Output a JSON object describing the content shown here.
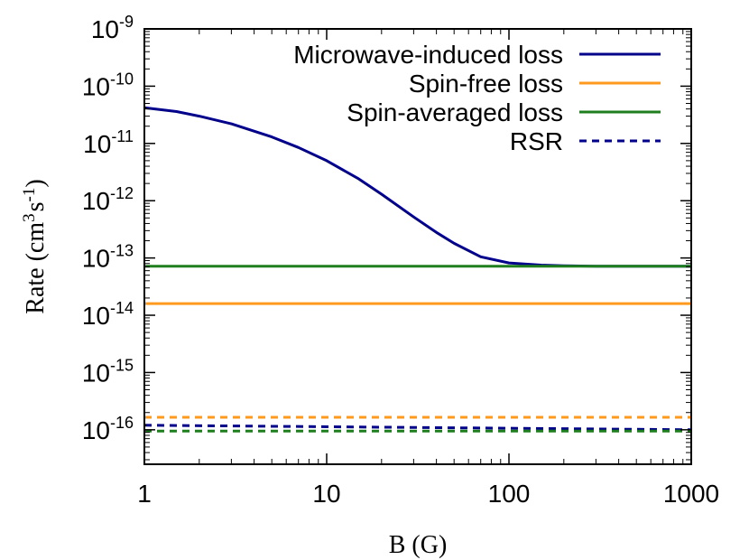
{
  "chart_data": {
    "type": "line",
    "xlabel": "B (G)",
    "ylabel": {
      "base": "Rate (cm",
      "sup1": "3",
      "mid": "s",
      "sup2": "-1",
      "end": ")"
    },
    "xscale": "log",
    "yscale": "log",
    "xlim": [
      1,
      1000
    ],
    "ylim": [
      2.5e-17,
      1e-09
    ],
    "x_ticks": [
      {
        "value": 1,
        "label": "1"
      },
      {
        "value": 10,
        "label": "10"
      },
      {
        "value": 100,
        "label": "100"
      },
      {
        "value": 1000,
        "label": "1000"
      }
    ],
    "y_ticks": [
      {
        "value": 1e-09,
        "base": "10",
        "exp": "-9"
      },
      {
        "value": 1e-10,
        "base": "10",
        "exp": "-10"
      },
      {
        "value": 1e-11,
        "base": "10",
        "exp": "-11"
      },
      {
        "value": 1e-12,
        "base": "10",
        "exp": "-12"
      },
      {
        "value": 1e-13,
        "base": "10",
        "exp": "-13"
      },
      {
        "value": 1e-14,
        "base": "10",
        "exp": "-14"
      },
      {
        "value": 1e-15,
        "base": "10",
        "exp": "-15"
      },
      {
        "value": 1e-16,
        "base": "10",
        "exp": "-16"
      }
    ],
    "grid": false,
    "legend_position": "top-right",
    "series": [
      {
        "name": "Microwave-induced loss",
        "color": "#00008b",
        "dash": "solid",
        "x": [
          1,
          1.5,
          2,
          3,
          5,
          7,
          10,
          15,
          20,
          30,
          40,
          50,
          70,
          100,
          150,
          200,
          300,
          500,
          1000
        ],
        "y": [
          4.2e-11,
          3.6e-11,
          3e-11,
          2.2e-11,
          1.3e-11,
          8.5e-12,
          5e-12,
          2.4e-12,
          1.3e-12,
          5.2e-13,
          2.8e-13,
          1.8e-13,
          1.05e-13,
          8.2e-14,
          7.5e-14,
          7.3e-14,
          7.2e-14,
          7.2e-14,
          7.2e-14
        ]
      },
      {
        "name": "Spin-free loss",
        "color": "#ff9a1f",
        "dash": "solid",
        "x": [
          1,
          1000
        ],
        "y": [
          1.6e-14,
          1.6e-14
        ]
      },
      {
        "name": "Spin-averaged loss",
        "color": "#1f7f1f",
        "dash": "solid",
        "x": [
          1,
          1000
        ],
        "y": [
          7.2e-14,
          7.2e-14
        ]
      },
      {
        "name": "RSR",
        "color": "#00008b",
        "dash": "dashed",
        "x": [
          1,
          1000
        ],
        "y": [
          1.2e-16,
          1e-16
        ]
      },
      {
        "name": "",
        "color": "#ff9a1f",
        "dash": "dashed",
        "x": [
          1,
          1000
        ],
        "y": [
          1.65e-16,
          1.65e-16
        ]
      },
      {
        "name": "",
        "color": "#1f7f1f",
        "dash": "dashed",
        "x": [
          1,
          1000
        ],
        "y": [
          9.5e-17,
          9.5e-17
        ]
      }
    ]
  }
}
